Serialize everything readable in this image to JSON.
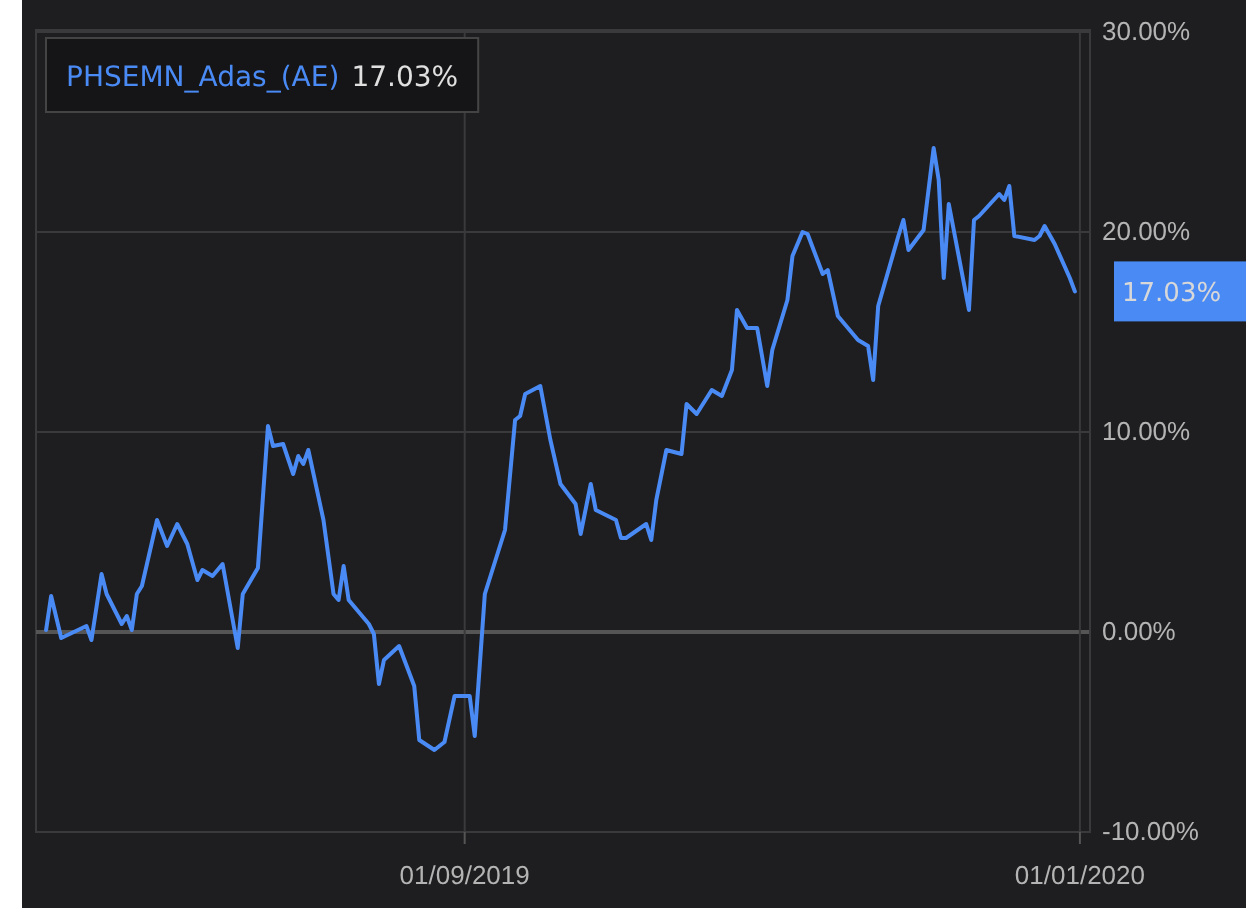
{
  "chart_data": {
    "type": "line",
    "legend": "top left",
    "grid": true,
    "line_style": "solid",
    "xlim": [
      "2019-06-08",
      "2020-01-03"
    ],
    "xticks": [
      {
        "value": "2019-09-01",
        "label": "01/09/2019"
      },
      {
        "value": "2020-01-01",
        "label": "01/01/2020"
      }
    ],
    "ylim": [
      -10,
      30
    ],
    "yticks": [
      {
        "value": -10,
        "label": "-10.00%"
      },
      {
        "value": 0,
        "label": "0.00%"
      },
      {
        "value": 10,
        "label": "10.00%"
      },
      {
        "value": 20,
        "label": "20.00%"
      },
      {
        "value": 30,
        "label": "30.00%"
      }
    ],
    "series": [
      {
        "name": "PHSEMN_Adas_(AE)",
        "color": "#4a8af4",
        "x": [
          "2019-06-10",
          "2019-06-11",
          "2019-06-13",
          "2019-06-18",
          "2019-06-19",
          "2019-06-21",
          "2019-06-22",
          "2019-06-25",
          "2019-06-26",
          "2019-06-27",
          "2019-06-28",
          "2019-06-29",
          "2019-07-02",
          "2019-07-04",
          "2019-07-06",
          "2019-07-08",
          "2019-07-10",
          "2019-07-11",
          "2019-07-13",
          "2019-07-15",
          "2019-07-18",
          "2019-07-19",
          "2019-07-22",
          "2019-07-24",
          "2019-07-25",
          "2019-07-27",
          "2019-07-29",
          "2019-07-30",
          "2019-07-31",
          "2019-08-01",
          "2019-08-04",
          "2019-08-06",
          "2019-08-07",
          "2019-08-08",
          "2019-08-09",
          "2019-08-13",
          "2019-08-14",
          "2019-08-15",
          "2019-08-16",
          "2019-08-19",
          "2019-08-22",
          "2019-08-23",
          "2019-08-26",
          "2019-08-28",
          "2019-08-30",
          "2019-09-02",
          "2019-09-03",
          "2019-09-05",
          "2019-09-09",
          "2019-09-11",
          "2019-09-12",
          "2019-09-13",
          "2019-09-16",
          "2019-09-18",
          "2019-09-20",
          "2019-09-23",
          "2019-09-24",
          "2019-09-26",
          "2019-09-27",
          "2019-10-01",
          "2019-10-02",
          "2019-10-03",
          "2019-10-07",
          "2019-10-08",
          "2019-10-09",
          "2019-10-11",
          "2019-10-14",
          "2019-10-15",
          "2019-10-17",
          "2019-10-20",
          "2019-10-22",
          "2019-10-24",
          "2019-10-25",
          "2019-10-27",
          "2019-10-29",
          "2019-10-31",
          "2019-11-01",
          "2019-11-04",
          "2019-11-05",
          "2019-11-07",
          "2019-11-08",
          "2019-11-11",
          "2019-11-12",
          "2019-11-14",
          "2019-11-18",
          "2019-11-20",
          "2019-11-21",
          "2019-11-22",
          "2019-11-26",
          "2019-11-27",
          "2019-11-28",
          "2019-12-01",
          "2019-12-03",
          "2019-12-04",
          "2019-12-05",
          "2019-12-06",
          "2019-12-10",
          "2019-12-11",
          "2019-12-12",
          "2019-12-16",
          "2019-12-17",
          "2019-12-18",
          "2019-12-19",
          "2019-12-23",
          "2019-12-24",
          "2019-12-25",
          "2019-12-27",
          "2019-12-30",
          "2019-12-31"
        ],
        "values": [
          0.1,
          1.8,
          -0.3,
          0.3,
          -0.4,
          2.9,
          1.9,
          0.4,
          0.8,
          0.1,
          1.9,
          2.3,
          5.6,
          4.3,
          5.4,
          4.4,
          2.6,
          3.1,
          2.8,
          3.4,
          -0.8,
          1.9,
          3.2,
          10.3,
          9.3,
          9.4,
          7.9,
          8.8,
          8.4,
          9.1,
          5.6,
          1.9,
          1.6,
          3.3,
          1.6,
          0.4,
          -0.1,
          -2.6,
          -1.4,
          -0.7,
          -2.7,
          -5.4,
          -5.9,
          -5.5,
          -3.2,
          -3.2,
          -5.2,
          1.9,
          5.1,
          10.6,
          10.8,
          11.9,
          12.3,
          9.6,
          7.4,
          6.4,
          4.9,
          7.4,
          6.1,
          5.6,
          4.7,
          4.7,
          5.4,
          4.6,
          6.6,
          9.1,
          8.9,
          11.4,
          10.9,
          12.1,
          11.8,
          13.1,
          16.1,
          15.2,
          15.2,
          12.3,
          14.1,
          16.6,
          18.8,
          20.0,
          19.9,
          17.9,
          18.1,
          15.8,
          14.6,
          14.3,
          12.6,
          16.3,
          19.8,
          20.6,
          19.1,
          20.1,
          24.2,
          22.6,
          17.7,
          21.4,
          16.1,
          20.6,
          20.8,
          21.9,
          21.6,
          22.3,
          19.8,
          19.6,
          19.8,
          20.3,
          19.4,
          17.7,
          17.03
        ],
        "value_labels": [
          null,
          null,
          null,
          null,
          null,
          null,
          null,
          null,
          null,
          null,
          null,
          null,
          null,
          null,
          null,
          null,
          null,
          null,
          null,
          null,
          null,
          null,
          null,
          null,
          null,
          null,
          null,
          null,
          null,
          null,
          null,
          null,
          null,
          null,
          null,
          null,
          null,
          null,
          null,
          null,
          null,
          null,
          null,
          null,
          null,
          null,
          null,
          null,
          null,
          null,
          null,
          null,
          null,
          null,
          null,
          null,
          null,
          null,
          null,
          null,
          null,
          null,
          null,
          null,
          null,
          null,
          null,
          null,
          null,
          null,
          null,
          null,
          null,
          null,
          null,
          null,
          null,
          null,
          null,
          null,
          null,
          null,
          null,
          null,
          null,
          null,
          null,
          null,
          null,
          null,
          null,
          null,
          null,
          null,
          null,
          null,
          null,
          null,
          null,
          null,
          null,
          null,
          null,
          null,
          null,
          null,
          null,
          null,
          "17.03%"
        ]
      }
    ]
  }
}
